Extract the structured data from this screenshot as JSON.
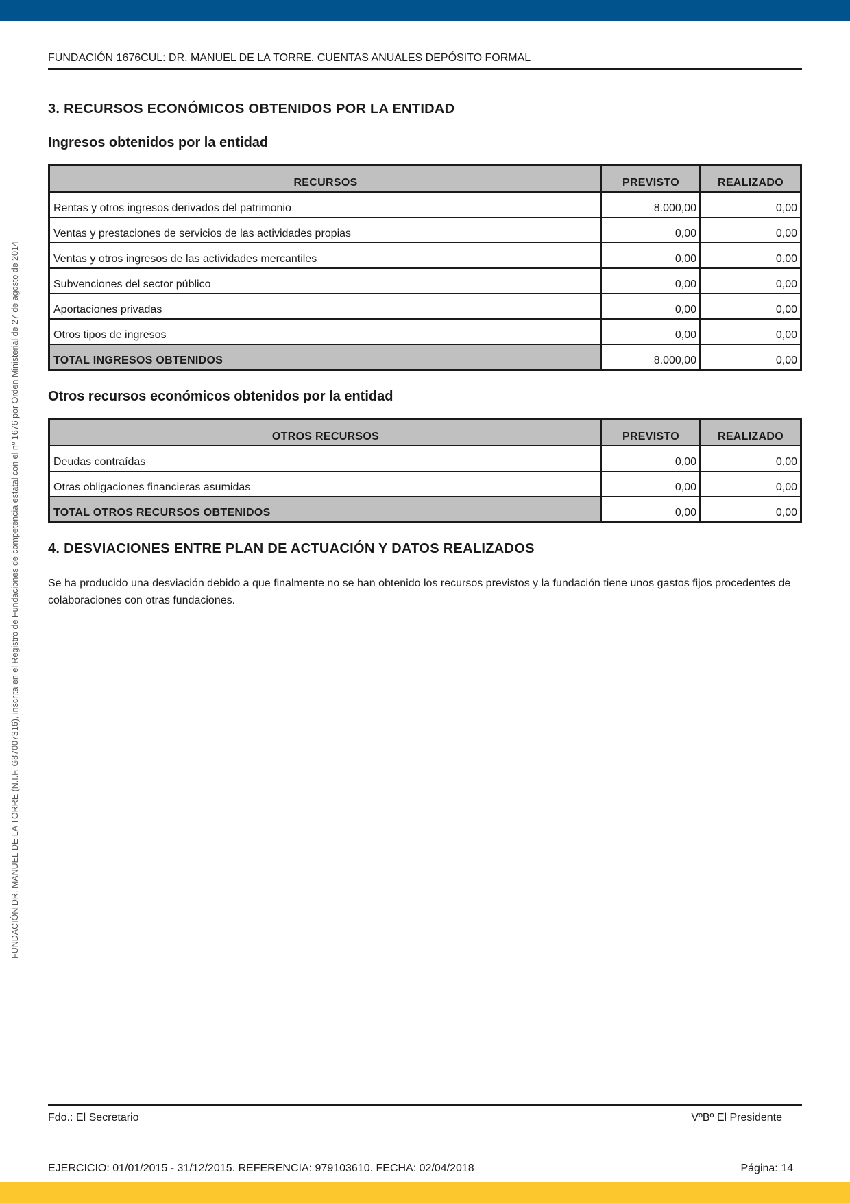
{
  "header": {
    "title": "FUNDACIÓN 1676CUL: DR. MANUEL DE LA TORRE. CUENTAS ANUALES DEPÓSITO FORMAL"
  },
  "side_text": "FUNDACIÓN DR. MANUEL DE LA TORRE (N.I.F. G87007316), inscrita en el Registro de Fundaciones de competencia estatal con el nº 1676 por Orden Ministerial de 27 de agosto de 2014",
  "section3": {
    "title": "3. RECURSOS ECONÓMICOS OBTENIDOS POR LA ENTIDAD",
    "ingresos": {
      "subtitle": "Ingresos obtenidos por la entidad",
      "columns": [
        "RECURSOS",
        "PREVISTO",
        "REALIZADO"
      ],
      "rows": [
        {
          "label": "Rentas y otros ingresos derivados del patrimonio",
          "previsto": "8.000,00",
          "realizado": "0,00"
        },
        {
          "label": "Ventas y prestaciones de servicios de las actividades propias",
          "previsto": "0,00",
          "realizado": "0,00"
        },
        {
          "label": "Ventas y otros ingresos de las actividades mercantiles",
          "previsto": "0,00",
          "realizado": "0,00"
        },
        {
          "label": "Subvenciones del sector público",
          "previsto": "0,00",
          "realizado": "0,00"
        },
        {
          "label": "Aportaciones privadas",
          "previsto": "0,00",
          "realizado": "0,00"
        },
        {
          "label": "Otros tipos de ingresos",
          "previsto": "0,00",
          "realizado": "0,00"
        }
      ],
      "total": {
        "label": "TOTAL INGRESOS OBTENIDOS",
        "previsto": "8.000,00",
        "realizado": "0,00"
      }
    },
    "otros": {
      "subtitle": "Otros recursos económicos obtenidos por la entidad",
      "columns": [
        "OTROS RECURSOS",
        "PREVISTO",
        "REALIZADO"
      ],
      "rows": [
        {
          "label": "Deudas contraídas",
          "previsto": "0,00",
          "realizado": "0,00"
        },
        {
          "label": "Otras obligaciones financieras asumidas",
          "previsto": "0,00",
          "realizado": "0,00"
        }
      ],
      "total": {
        "label": "TOTAL OTROS RECURSOS OBTENIDOS",
        "previsto": "0,00",
        "realizado": "0,00"
      }
    }
  },
  "section4": {
    "title": "4. DESVIACIONES ENTRE PLAN DE ACTUACIÓN Y DATOS REALIZADOS",
    "text": "Se ha producido una desviación debido a que finalmente no se han obtenido los recursos previstos y la fundación tiene unos gastos fijos procedentes de colaboraciones con otras fundaciones."
  },
  "footer": {
    "secretario": "Fdo.: El Secretario",
    "presidente": "VºBº El Presidente",
    "ejercicio": "EJERCICIO: 01/01/2015 - 31/12/2015. REFERENCIA: 979103610. FECHA: 02/04/2018",
    "pagina": "Página: 14"
  },
  "colors": {
    "top_bar": "#00538c",
    "bottom_bar": "#fcc72c",
    "table_header": "#c0c0c0"
  }
}
